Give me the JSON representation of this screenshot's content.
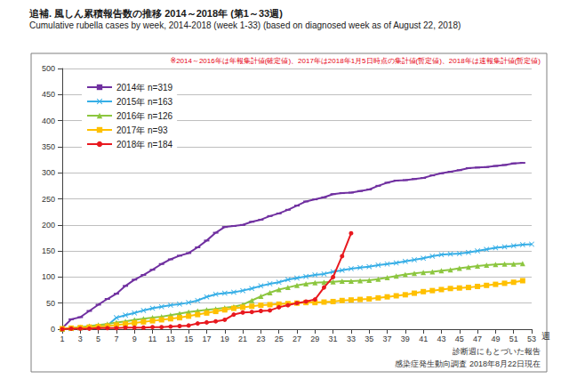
{
  "chart_data": {
    "type": "line",
    "title": "追補. 風しん累積報告数の推移 2014～2018年 (第1～33週)",
    "subtitle": "Cumulative rubella cases by week, 2014-2018 (week 1-33) (based on diagnosed week as of August 22, 2018)",
    "x_label": "週",
    "annotations": [
      {
        "text": "※2014～2016年は年報集計値(確定値)、2017年は2018年1月5日時点の集計値(暫定値)、2018年は速報集計値(暫定値)",
        "color": "#e60012"
      },
      {
        "text": "診断週にもとづいた報告",
        "color": "#333333"
      },
      {
        "text": "感染症発生動向調査 2018年8月22日現在",
        "color": "#333333"
      }
    ],
    "x": [
      1,
      2,
      3,
      4,
      5,
      6,
      7,
      8,
      9,
      10,
      11,
      12,
      13,
      14,
      15,
      16,
      17,
      18,
      19,
      20,
      21,
      22,
      23,
      24,
      25,
      26,
      27,
      28,
      29,
      30,
      31,
      32,
      33,
      34,
      35,
      36,
      37,
      38,
      39,
      40,
      41,
      42,
      43,
      44,
      45,
      46,
      47,
      48,
      49,
      50,
      51,
      52,
      53
    ],
    "series": [
      {
        "name": "2014年 n=319",
        "color": "#7030a0",
        "marker": "dash",
        "values": [
          2,
          19,
          23,
          35,
          47,
          58,
          68,
          83,
          95,
          104,
          114,
          125,
          134,
          141,
          146,
          157,
          170,
          185,
          196,
          198,
          200,
          206,
          210,
          217,
          222,
          229,
          237,
          245,
          249,
          253,
          259,
          261,
          262,
          265,
          268,
          275,
          281,
          285,
          286,
          288,
          290,
          295,
          299,
          302,
          305,
          309,
          310,
          311,
          313,
          315,
          318,
          319,
          null
        ]
      },
      {
        "name": "2015年 n=163",
        "color": "#36aee6",
        "marker": "cross",
        "values": [
          0,
          1,
          2,
          3,
          5,
          7,
          22,
          27,
          31,
          36,
          40,
          43,
          46,
          48,
          51,
          55,
          62,
          67,
          69,
          71,
          74,
          78,
          83,
          87,
          90,
          95,
          98,
          101,
          104,
          106,
          110,
          113,
          116,
          118,
          120,
          123,
          125,
          127,
          130,
          133,
          136,
          140,
          143,
          144,
          145,
          147,
          150,
          153,
          156,
          158,
          160,
          162,
          163
        ]
      },
      {
        "name": "2016年 n=126",
        "color": "#8cc63f",
        "marker": "triangle",
        "values": [
          0,
          2,
          4,
          6,
          8,
          10,
          13,
          15,
          18,
          20,
          22,
          24,
          27,
          30,
          33,
          35,
          37,
          39,
          41,
          43,
          47,
          55,
          63,
          70,
          76,
          80,
          84,
          87,
          89,
          90,
          91,
          92,
          92,
          93,
          94,
          96,
          99,
          102,
          105,
          107,
          109,
          110,
          112,
          114,
          117,
          119,
          121,
          123,
          124,
          125,
          125,
          126,
          null
        ]
      },
      {
        "name": "2017年 n=93",
        "color": "#ffc000",
        "marker": "square",
        "values": [
          1,
          2,
          3,
          4,
          5,
          6,
          8,
          10,
          12,
          14,
          16,
          18,
          20,
          22,
          25,
          28,
          31,
          34,
          37,
          40,
          42,
          44,
          46,
          47,
          48,
          49,
          50,
          51,
          51,
          52,
          53,
          55,
          56,
          57,
          58,
          60,
          62,
          64,
          66,
          69,
          72,
          74,
          76,
          78,
          79,
          80,
          82,
          84,
          86,
          88,
          90,
          93,
          null
        ]
      },
      {
        "name": "2018年 n=184",
        "color": "#e8191f",
        "marker": "circle",
        "values": [
          0,
          1,
          1,
          1,
          2,
          2,
          2,
          3,
          3,
          3,
          4,
          4,
          5,
          6,
          7,
          11,
          13,
          15,
          18,
          28,
          32,
          33,
          35,
          36,
          42,
          46,
          50,
          53,
          57,
          80,
          100,
          140,
          184,
          null,
          null,
          null,
          null,
          null,
          null,
          null,
          null,
          null,
          null,
          null,
          null,
          null,
          null,
          null,
          null,
          null,
          null,
          null,
          null
        ]
      }
    ],
    "xlim": [
      1,
      53
    ],
    "xticks": [
      1,
      3,
      5,
      7,
      9,
      11,
      13,
      15,
      17,
      19,
      21,
      23,
      25,
      27,
      29,
      31,
      33,
      35,
      37,
      39,
      41,
      43,
      45,
      47,
      49,
      51,
      53
    ],
    "ylim": [
      0,
      500
    ],
    "yticks": [
      0,
      50,
      100,
      150,
      200,
      250,
      300,
      350,
      400,
      450,
      500
    ],
    "grid": true,
    "legend": "upper left"
  }
}
